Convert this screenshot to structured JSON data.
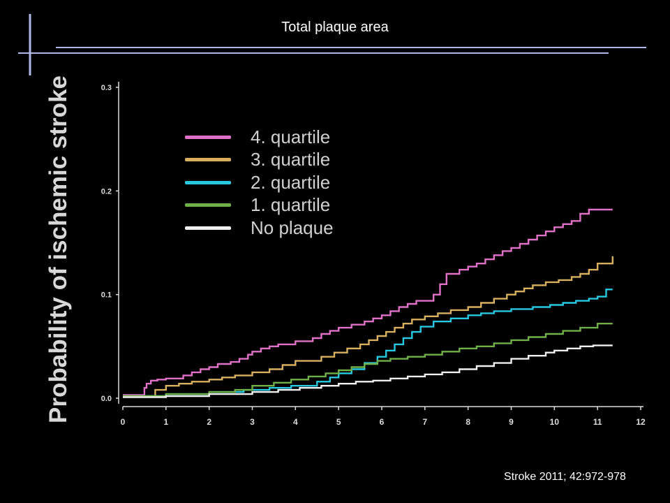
{
  "slide": {
    "title": "Total plaque area",
    "citation": "Stroke 2011; 42:972-978"
  },
  "colors": {
    "background": "#000000",
    "frame_line": "#b0b8e8",
    "axis": "#dddddd"
  },
  "chart_data": {
    "type": "line",
    "title": "",
    "xlabel": "",
    "ylabel": "Probability of ischemic stroke",
    "xlim": [
      0,
      12
    ],
    "ylim": [
      0,
      0.3
    ],
    "x_ticks": [
      0,
      1,
      2,
      3,
      4,
      5,
      6,
      7,
      8,
      9,
      10,
      11,
      12
    ],
    "y_ticks": [
      0.0,
      0.1,
      0.2,
      0.3
    ],
    "y_tick_labels": [
      "0.0",
      "0.1",
      "0.2",
      "0.3"
    ],
    "legend_position": "top-left",
    "grid": false,
    "series": [
      {
        "name": "4. quartile",
        "color": "#e070c8",
        "x": [
          0,
          0.45,
          0.5,
          0.55,
          0.65,
          0.8,
          1.0,
          1.4,
          1.6,
          1.8,
          2.0,
          2.2,
          2.5,
          2.7,
          2.9,
          3.0,
          3.2,
          3.4,
          3.6,
          4.0,
          4.4,
          4.6,
          4.8,
          5.0,
          5.3,
          5.6,
          5.8,
          6.0,
          6.2,
          6.4,
          6.6,
          6.8,
          7.2,
          7.35,
          7.5,
          7.8,
          8.0,
          8.2,
          8.4,
          8.6,
          8.8,
          9.0,
          9.2,
          9.4,
          9.6,
          9.8,
          10.0,
          10.2,
          10.4,
          10.6,
          10.8,
          11.35
        ],
        "y": [
          0.003,
          0.003,
          0.01,
          0.014,
          0.017,
          0.018,
          0.019,
          0.022,
          0.025,
          0.028,
          0.03,
          0.033,
          0.035,
          0.038,
          0.042,
          0.045,
          0.048,
          0.05,
          0.052,
          0.055,
          0.058,
          0.062,
          0.065,
          0.068,
          0.071,
          0.074,
          0.077,
          0.08,
          0.084,
          0.088,
          0.091,
          0.094,
          0.1,
          0.11,
          0.12,
          0.124,
          0.127,
          0.13,
          0.134,
          0.138,
          0.142,
          0.145,
          0.149,
          0.153,
          0.157,
          0.161,
          0.165,
          0.168,
          0.171,
          0.178,
          0.182,
          0.182
        ]
      },
      {
        "name": "3. quartile",
        "color": "#d8b060",
        "x": [
          0,
          0.55,
          0.75,
          1.0,
          1.3,
          1.6,
          2.0,
          2.3,
          2.6,
          3.0,
          3.4,
          3.7,
          4.0,
          4.6,
          4.9,
          5.2,
          5.5,
          5.7,
          5.9,
          6.1,
          6.3,
          6.5,
          6.7,
          7.0,
          7.3,
          7.6,
          8.0,
          8.3,
          8.6,
          8.9,
          9.1,
          9.3,
          9.5,
          9.8,
          10.1,
          10.4,
          10.6,
          10.8,
          11.0,
          11.35
        ],
        "y": [
          0.002,
          0.002,
          0.008,
          0.012,
          0.014,
          0.016,
          0.018,
          0.02,
          0.022,
          0.025,
          0.028,
          0.032,
          0.036,
          0.04,
          0.044,
          0.048,
          0.052,
          0.056,
          0.06,
          0.064,
          0.068,
          0.072,
          0.076,
          0.079,
          0.082,
          0.085,
          0.088,
          0.092,
          0.096,
          0.1,
          0.103,
          0.106,
          0.109,
          0.112,
          0.114,
          0.117,
          0.12,
          0.124,
          0.13,
          0.137
        ]
      },
      {
        "name": "2. quartile",
        "color": "#28c8e0",
        "x": [
          0,
          1.0,
          2.0,
          2.8,
          3.4,
          3.9,
          4.5,
          4.8,
          5.0,
          5.3,
          5.6,
          5.9,
          6.1,
          6.3,
          6.5,
          6.7,
          6.9,
          7.2,
          7.6,
          8.0,
          8.3,
          8.6,
          9.0,
          9.5,
          9.9,
          10.2,
          10.5,
          10.8,
          11.0,
          11.2,
          11.35
        ],
        "y": [
          0.002,
          0.004,
          0.006,
          0.008,
          0.01,
          0.012,
          0.016,
          0.02,
          0.024,
          0.028,
          0.034,
          0.04,
          0.046,
          0.052,
          0.058,
          0.064,
          0.069,
          0.074,
          0.077,
          0.08,
          0.082,
          0.084,
          0.086,
          0.088,
          0.09,
          0.092,
          0.094,
          0.096,
          0.098,
          0.105,
          0.105
        ]
      },
      {
        "name": "1. quartile",
        "color": "#70b048",
        "x": [
          0,
          1.0,
          2.0,
          2.6,
          3.0,
          3.5,
          3.9,
          4.3,
          4.7,
          5.0,
          5.3,
          5.6,
          5.9,
          6.2,
          6.6,
          7.0,
          7.4,
          7.8,
          8.2,
          8.6,
          9.0,
          9.4,
          9.8,
          10.2,
          10.6,
          11.0,
          11.35
        ],
        "y": [
          0.002,
          0.004,
          0.006,
          0.008,
          0.012,
          0.015,
          0.018,
          0.021,
          0.024,
          0.027,
          0.03,
          0.033,
          0.036,
          0.038,
          0.04,
          0.042,
          0.045,
          0.048,
          0.05,
          0.053,
          0.056,
          0.059,
          0.062,
          0.065,
          0.068,
          0.072,
          0.072
        ]
      },
      {
        "name": "No plaque",
        "color": "#f0f0f0",
        "x": [
          0,
          1.0,
          2.0,
          3.0,
          3.6,
          4.1,
          4.6,
          5.0,
          5.4,
          5.8,
          6.2,
          6.6,
          7.0,
          7.4,
          7.8,
          8.2,
          8.6,
          9.0,
          9.4,
          9.8,
          10.0,
          10.3,
          10.6,
          10.9,
          11.35
        ],
        "y": [
          0.001,
          0.002,
          0.004,
          0.006,
          0.008,
          0.01,
          0.012,
          0.014,
          0.016,
          0.017,
          0.019,
          0.021,
          0.023,
          0.025,
          0.028,
          0.031,
          0.034,
          0.038,
          0.041,
          0.044,
          0.046,
          0.048,
          0.05,
          0.051,
          0.051
        ]
      }
    ]
  }
}
